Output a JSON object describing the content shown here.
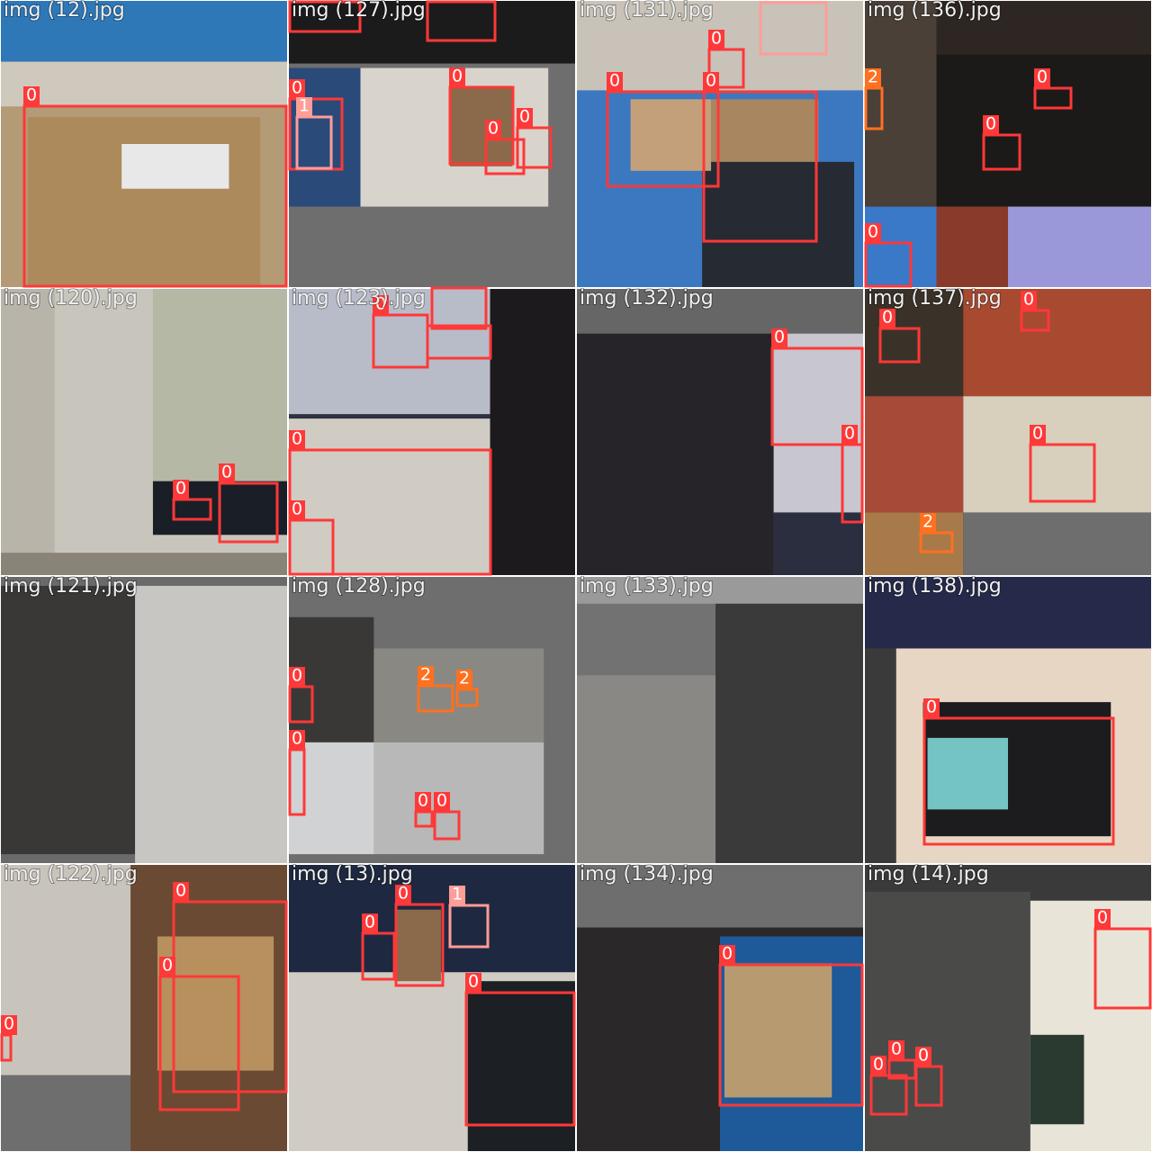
{
  "tiles": [
    {
      "name": "img (12).jpg",
      "boxes": [
        {
          "label": "0",
          "color": "#ff3838"
        }
      ]
    },
    {
      "name": "img (127).jpg",
      "boxes": [
        {
          "label": "0",
          "color": "#ff3838"
        },
        {
          "label": "0",
          "color": "#ff3838"
        },
        {
          "label": "0",
          "color": "#ff3838"
        },
        {
          "label": "0",
          "color": "#ff3838"
        },
        {
          "label": "1",
          "color": "#ff9d97"
        }
      ]
    },
    {
      "name": "img (131).jpg",
      "boxes": [
        {
          "label": "0",
          "color": "#ff3838"
        },
        {
          "label": "0",
          "color": "#ff3838"
        },
        {
          "label": "0",
          "color": "#ff3838"
        }
      ]
    },
    {
      "name": "img (136).jpg",
      "boxes": [
        {
          "label": "2",
          "color": "#ff701f"
        },
        {
          "label": "0",
          "color": "#ff3838"
        },
        {
          "label": "0",
          "color": "#ff3838"
        },
        {
          "label": "0",
          "color": "#ff3838"
        }
      ]
    },
    {
      "name": "img (120).jpg",
      "boxes": [
        {
          "label": "0",
          "color": "#ff3838"
        },
        {
          "label": "0",
          "color": "#ff3838"
        }
      ]
    },
    {
      "name": "img (123).jpg",
      "boxes": [
        {
          "label": "0",
          "color": "#ff3838"
        },
        {
          "label": "0",
          "color": "#ff3838"
        },
        {
          "label": "0",
          "color": "#ff3838"
        }
      ]
    },
    {
      "name": "img (132).jpg",
      "boxes": [
        {
          "label": "0",
          "color": "#ff3838"
        },
        {
          "label": "0",
          "color": "#ff3838"
        }
      ]
    },
    {
      "name": "img (137).jpg",
      "boxes": [
        {
          "label": "0",
          "color": "#ff3838"
        },
        {
          "label": "0",
          "color": "#ff3838"
        },
        {
          "label": "0",
          "color": "#ff3838"
        },
        {
          "label": "2",
          "color": "#ff701f"
        }
      ]
    },
    {
      "name": "img (121).jpg",
      "boxes": []
    },
    {
      "name": "img (128).jpg",
      "boxes": [
        {
          "label": "2",
          "color": "#ff701f"
        },
        {
          "label": "2",
          "color": "#ff701f"
        },
        {
          "label": "0",
          "color": "#ff3838"
        },
        {
          "label": "0",
          "color": "#ff3838"
        },
        {
          "label": "0",
          "color": "#ff3838"
        },
        {
          "label": "0",
          "color": "#ff3838"
        }
      ]
    },
    {
      "name": "img (133).jpg",
      "boxes": []
    },
    {
      "name": "img (138).jpg",
      "boxes": [
        {
          "label": "0",
          "color": "#ff3838"
        }
      ]
    },
    {
      "name": "img (122).jpg",
      "boxes": [
        {
          "label": "0",
          "color": "#ff3838"
        },
        {
          "label": "0",
          "color": "#ff3838"
        },
        {
          "label": "0",
          "color": "#ff3838"
        }
      ]
    },
    {
      "name": "img (13).jpg",
      "boxes": [
        {
          "label": "0",
          "color": "#ff3838"
        },
        {
          "label": "1",
          "color": "#ff9d97"
        },
        {
          "label": "0",
          "color": "#ff3838"
        },
        {
          "label": "0",
          "color": "#ff3838"
        }
      ]
    },
    {
      "name": "img (134).jpg",
      "boxes": [
        {
          "label": "0",
          "color": "#ff3838"
        }
      ]
    },
    {
      "name": "img (14).jpg",
      "boxes": [
        {
          "label": "0",
          "color": "#ff3838"
        },
        {
          "label": "0",
          "color": "#ff3838"
        },
        {
          "label": "0",
          "color": "#ff3838"
        },
        {
          "label": "0",
          "color": "#ff3838"
        }
      ]
    }
  ]
}
